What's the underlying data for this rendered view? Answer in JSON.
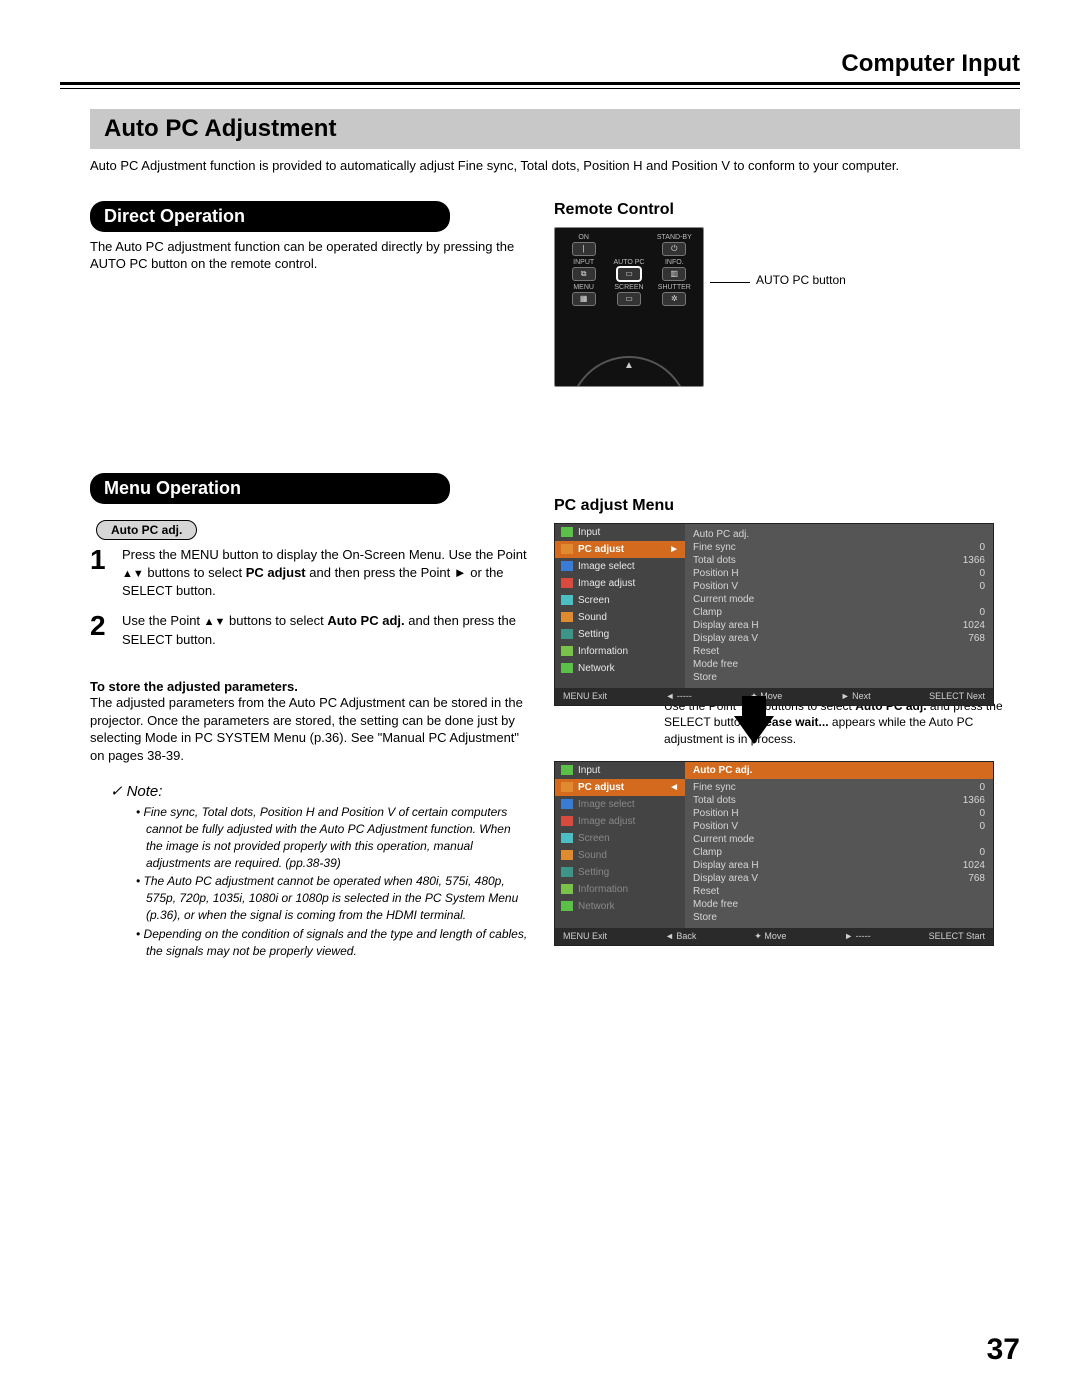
{
  "header": "Computer Input",
  "section_title": "Auto PC Adjustment",
  "intro": "Auto PC Adjustment function is provided to automatically adjust Fine sync, Total dots, Position H and Position V to conform to your computer.",
  "direct_op": {
    "title": "Direct Operation",
    "text": "The Auto PC adjustment function can be operated directly by pressing the AUTO PC button on the remote control."
  },
  "menu_op": {
    "title": "Menu Operation",
    "sub_pill": "Auto PC adj.",
    "step1_pre": "Press the MENU button to display the On-Screen Menu. Use the Point ",
    "step1_mid": " buttons to select ",
    "step1_bold": "PC adjust",
    "step1_post": " and then press the Point ► or the SELECT button.",
    "step2_pre": "Use the Point ",
    "step2_mid": " buttons to select ",
    "step2_bold": "Auto PC adj.",
    "step2_post": " and then press the SELECT button."
  },
  "store": {
    "title": "To store the adjusted parameters.",
    "text": "The adjusted parameters from the Auto PC Adjustment can be stored in the projector. Once the parameters are stored, the setting can be done just by selecting Mode in PC SYSTEM Menu (p.36). See \"Manual PC Adjustment\" on pages 38-39."
  },
  "note": {
    "title": "Note:",
    "items": [
      "Fine sync, Total dots, Position H and Position V  of certain computers cannot be fully adjusted with the Auto PC Adjustment function. When the image is not provided properly with this operation, manual adjustments are required. (pp.38-39)",
      "The Auto PC adjustment cannot be operated when 480i, 575i, 480p, 575p, 720p, 1035i, 1080i or 1080p is selected in the PC System Menu (p.36), or when the signal is coming from the HDMI terminal.",
      "Depending on the condition of signals and the type and length of cables, the signals may not be properly viewed."
    ]
  },
  "remote": {
    "heading": "Remote Control",
    "callout": "AUTO PC button",
    "labels": {
      "on": "ON",
      "standby": "STAND-BY",
      "input": "INPUT",
      "autopc": "AUTO PC",
      "info": "INFO.",
      "menu": "MENU",
      "screen": "SCREEN",
      "shutter": "SHUTTER"
    }
  },
  "pc_menu": {
    "heading": "PC adjust Menu",
    "left_items": [
      "Input",
      "PC adjust",
      "Image select",
      "Image adjust",
      "Screen",
      "Sound",
      "Setting",
      "Information",
      "Network"
    ],
    "right_rows": [
      {
        "k": "Auto PC adj.",
        "v": ""
      },
      {
        "k": "Fine sync",
        "v": "0"
      },
      {
        "k": "Total dots",
        "v": "1366"
      },
      {
        "k": "Position H",
        "v": "0"
      },
      {
        "k": "Position V",
        "v": "0"
      },
      {
        "k": "Current mode",
        "v": ""
      },
      {
        "k": "Clamp",
        "v": "0"
      },
      {
        "k": "Display area H",
        "v": "1024"
      },
      {
        "k": "Display area V",
        "v": "768"
      },
      {
        "k": "Reset",
        "v": ""
      },
      {
        "k": "Mode free",
        "v": ""
      },
      {
        "k": "Store",
        "v": ""
      }
    ],
    "bar1": [
      "MENU Exit",
      "◄ -----",
      "✦ Move",
      "► Next",
      "SELECT Next"
    ],
    "mid_note_pre": "Use the Point ",
    "mid_note_mid": " buttons to select ",
    "mid_note_b1": "Auto PC adj.",
    "mid_note_mid2": " and press the SELECT button. ",
    "mid_note_b2": "Please wait...",
    "mid_note_post": " appears while the Auto PC adjustment is in process.",
    "bar2": [
      "MENU Exit",
      "◄ Back",
      "✦ Move",
      "► -----",
      "SELECT Start"
    ]
  },
  "colors": {
    "icon_green": "#5bbf4a",
    "icon_blue": "#3a7bd5",
    "icon_red": "#d94b3f",
    "icon_cyan": "#4bbfc4",
    "icon_orange": "#e08b2f",
    "icon_teal": "#3f9488",
    "icon_lime": "#7bc24a"
  },
  "page_number": "37"
}
